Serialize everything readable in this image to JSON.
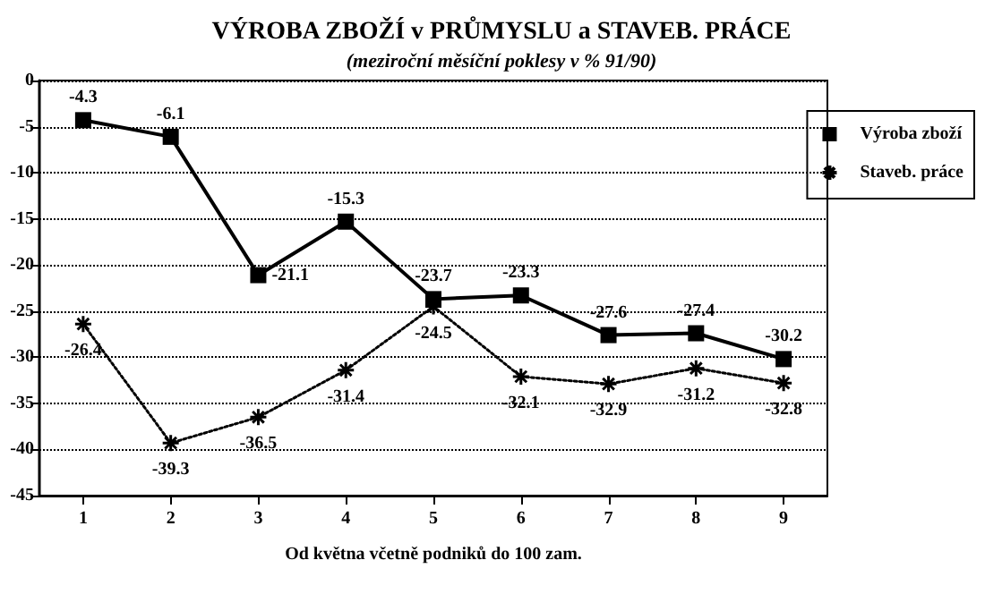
{
  "chart_data": {
    "type": "line",
    "title": "VÝROBA ZBOŽÍ v PRŮMYSLU a STAVEB. PRÁCE",
    "subtitle": "(meziroční měsíční poklesy v % 91/90)",
    "xlabel": "Od května včetně podniků do 100 zam.",
    "categories": [
      "1",
      "2",
      "3",
      "4",
      "5",
      "6",
      "7",
      "8",
      "9"
    ],
    "series": [
      {
        "name": "Výroba zboží",
        "color": "#000000",
        "marker": "square",
        "line_style": "solid",
        "values": [
          -4.3,
          -6.1,
          -21.1,
          -15.3,
          -23.7,
          -23.3,
          -27.6,
          -27.4,
          -30.2
        ]
      },
      {
        "name": "Staveb. práce",
        "color": "#000000",
        "marker": "cross",
        "line_style": "dotted",
        "values": [
          -26.4,
          -39.3,
          -36.5,
          -31.4,
          -24.5,
          -32.1,
          -32.9,
          -31.2,
          -32.8
        ]
      }
    ],
    "ylim": [
      -45,
      0
    ],
    "yticks": [
      -45,
      -40,
      -35,
      -30,
      -25,
      -20,
      -15,
      -10,
      -5,
      0
    ],
    "grid": "y",
    "legend": "right",
    "data_labels": true
  }
}
